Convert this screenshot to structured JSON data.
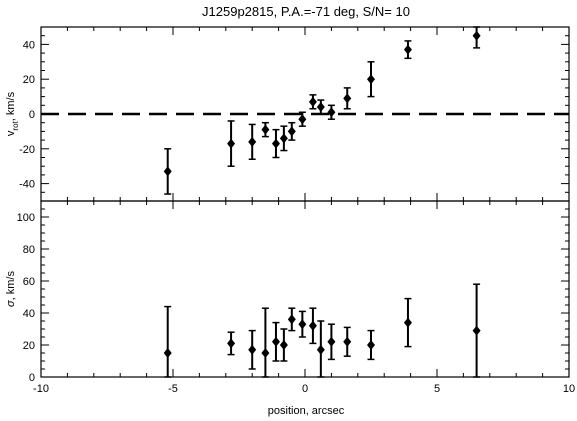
{
  "chart_data": [
    {
      "type": "scatter",
      "panel": "top",
      "title": "J1259p2815, P.A.=-71 deg, S/N= 10",
      "ylabel_main": "v",
      "ylabel_sub": "rot",
      "ylabel_unit": ", km/s",
      "xlim": [
        -10,
        10
      ],
      "ylim": [
        -50,
        50
      ],
      "xticks": [
        -10,
        -5,
        0,
        5,
        10
      ],
      "yticks": [
        -40,
        -20,
        0,
        20,
        40
      ],
      "ytick_labels": [
        "-40",
        "-20",
        "0",
        "20",
        "40"
      ],
      "zero_line": "dashed",
      "marker": "filled-diamond",
      "series": [
        {
          "x": [
            -5.2,
            -2.8,
            -2.0,
            -1.5,
            -1.1,
            -0.8,
            -0.5,
            -0.1,
            0.3,
            0.6,
            1.0,
            1.6,
            2.5,
            3.9,
            6.5
          ],
          "y": [
            -33,
            -17,
            -16,
            -9,
            -17,
            -14,
            -10,
            -3,
            7,
            4,
            1,
            9,
            20,
            37,
            45
          ],
          "err": [
            13,
            13,
            10,
            4,
            8,
            7,
            5,
            4,
            4,
            4,
            4,
            6,
            10,
            5,
            7
          ]
        }
      ]
    },
    {
      "type": "scatter",
      "panel": "bottom",
      "xlabel": "position, arcsec",
      "ylabel_main": "σ",
      "ylabel_unit": ", km/s",
      "xlim": [
        -10,
        10
      ],
      "ylim": [
        0,
        110
      ],
      "xticks": [
        -10,
        -5,
        0,
        5,
        10
      ],
      "xtick_labels": [
        "-10",
        "-5",
        "0",
        "5",
        "10"
      ],
      "yticks": [
        0,
        20,
        40,
        60,
        80,
        100
      ],
      "ytick_labels": [
        "0",
        "20",
        "40",
        "60",
        "80",
        "100"
      ],
      "marker": "filled-diamond",
      "series": [
        {
          "x": [
            -5.2,
            -2.8,
            -2.0,
            -1.5,
            -1.1,
            -0.8,
            -0.5,
            -0.1,
            0.3,
            0.6,
            1.0,
            1.6,
            2.5,
            3.9,
            6.5
          ],
          "y": [
            15,
            21,
            17,
            15,
            22,
            20,
            36,
            33,
            32,
            17,
            22,
            22,
            20,
            34,
            29
          ],
          "err": [
            29,
            7,
            12,
            28,
            12,
            10,
            7,
            8,
            11,
            18,
            11,
            9,
            9,
            15,
            29
          ]
        }
      ]
    }
  ]
}
